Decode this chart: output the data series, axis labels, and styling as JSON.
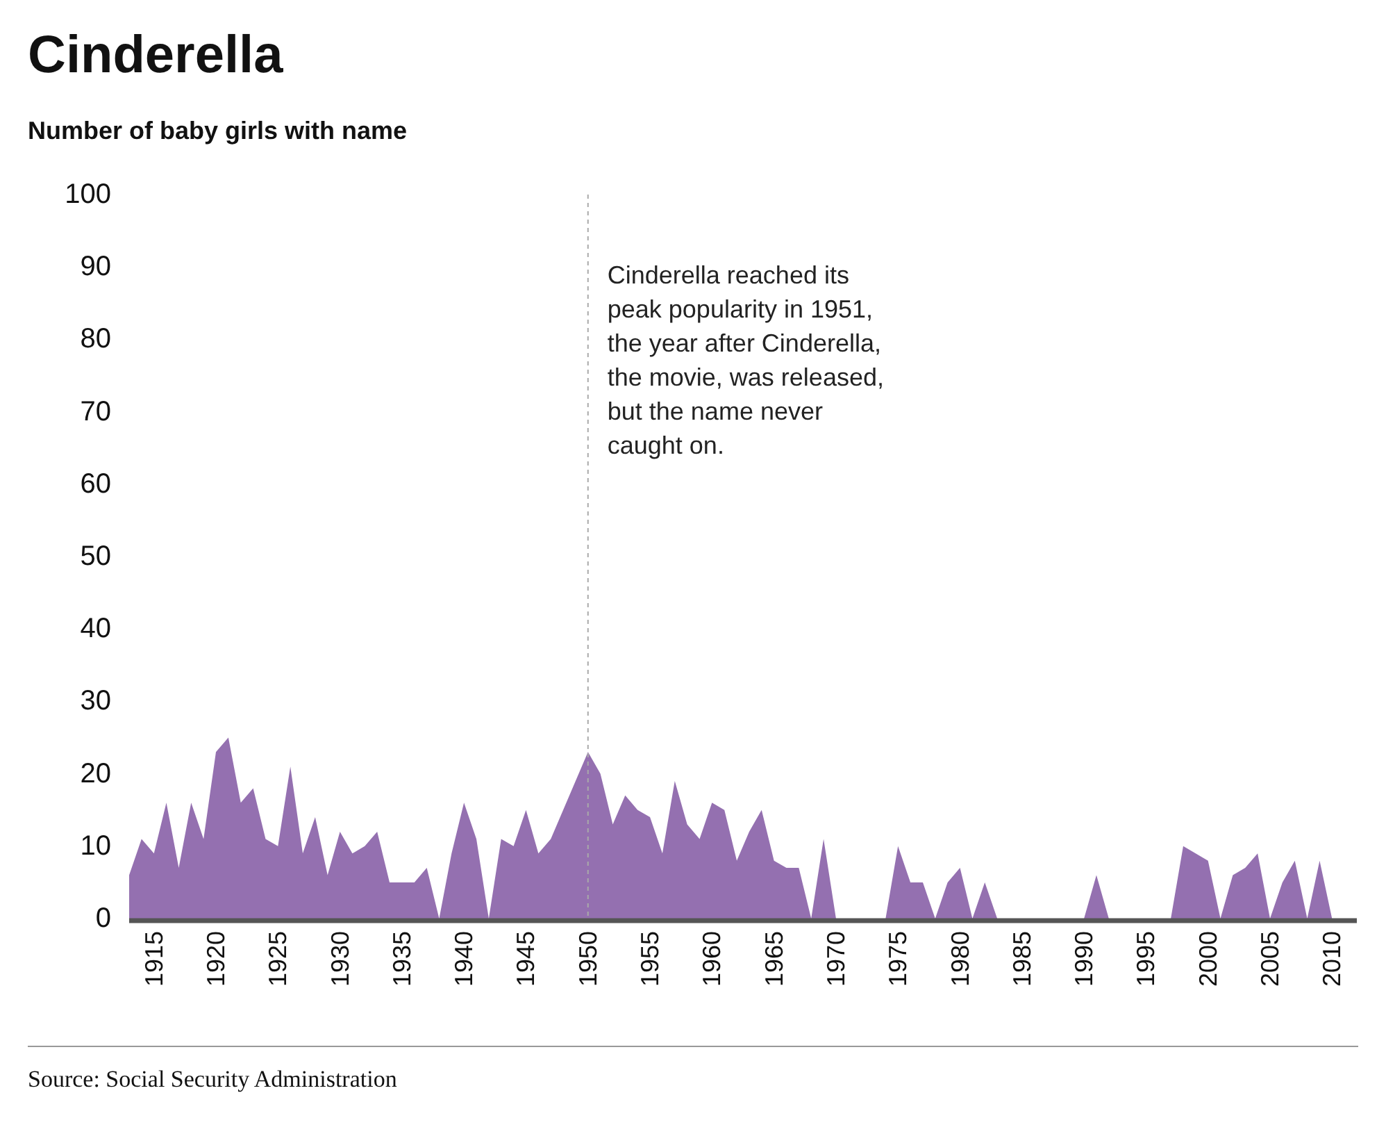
{
  "chart_data": {
    "type": "area",
    "title": "Cinderella",
    "ylabel": "Number of baby girls with name",
    "x": [
      1913,
      1914,
      1915,
      1916,
      1917,
      1918,
      1919,
      1920,
      1921,
      1922,
      1923,
      1924,
      1925,
      1926,
      1927,
      1928,
      1929,
      1930,
      1931,
      1932,
      1933,
      1934,
      1935,
      1936,
      1937,
      1938,
      1939,
      1940,
      1941,
      1942,
      1943,
      1944,
      1945,
      1946,
      1947,
      1948,
      1949,
      1950,
      1951,
      1952,
      1953,
      1954,
      1955,
      1956,
      1957,
      1958,
      1959,
      1960,
      1961,
      1962,
      1963,
      1964,
      1965,
      1966,
      1967,
      1968,
      1969,
      1970,
      1971,
      1972,
      1973,
      1974,
      1975,
      1976,
      1977,
      1978,
      1979,
      1980,
      1981,
      1982,
      1983,
      1984,
      1985,
      1986,
      1987,
      1988,
      1989,
      1990,
      1991,
      1992,
      1993,
      1994,
      1995,
      1996,
      1997,
      1998,
      1999,
      2000,
      2001,
      2002,
      2003,
      2004,
      2005,
      2006,
      2007,
      2008,
      2009,
      2010
    ],
    "series": [
      {
        "color": "#9470b0",
        "values": [
          6,
          11,
          9,
          16,
          7,
          16,
          11,
          23,
          25,
          16,
          18,
          11,
          10,
          21,
          9,
          14,
          6,
          12,
          9,
          10,
          12,
          5,
          5,
          5,
          7,
          0,
          9,
          16,
          11,
          0,
          11,
          10,
          15,
          9,
          11,
          15,
          19,
          23,
          20,
          13,
          17,
          15,
          14,
          9,
          19,
          13,
          11,
          16,
          15,
          8,
          12,
          15,
          8,
          7,
          7,
          0,
          11,
          0,
          0,
          0,
          0,
          0,
          10,
          5,
          5,
          0,
          5,
          7,
          0,
          5,
          0,
          0,
          0,
          0,
          0,
          0,
          0,
          0,
          6,
          0,
          0,
          0,
          0,
          0,
          0,
          10,
          9,
          8,
          0,
          6,
          7,
          9,
          0,
          5,
          8,
          0,
          8,
          0
        ]
      }
    ],
    "xlim": [
      1913,
      2012
    ],
    "xticks": [
      1915,
      1920,
      1925,
      1930,
      1935,
      1940,
      1945,
      1950,
      1955,
      1960,
      1965,
      1970,
      1975,
      1980,
      1985,
      1990,
      1995,
      2000,
      2005,
      2010
    ],
    "ylim": [
      0,
      100
    ],
    "yticks": [
      0,
      10,
      20,
      30,
      40,
      50,
      60,
      70,
      80,
      90,
      100
    ],
    "ref_lines": [
      {
        "axis": "x",
        "value": 1950,
        "color": "#aaaaaa",
        "line_style": "dashed",
        "label": "Cinderella reached its\npeak popularity in 1951,\nthe year after Cinderella,\nthe movie, was released,\nbut the name never\ncaught on."
      }
    ],
    "annotations": [
      "Source: Social Security Administration"
    ]
  }
}
